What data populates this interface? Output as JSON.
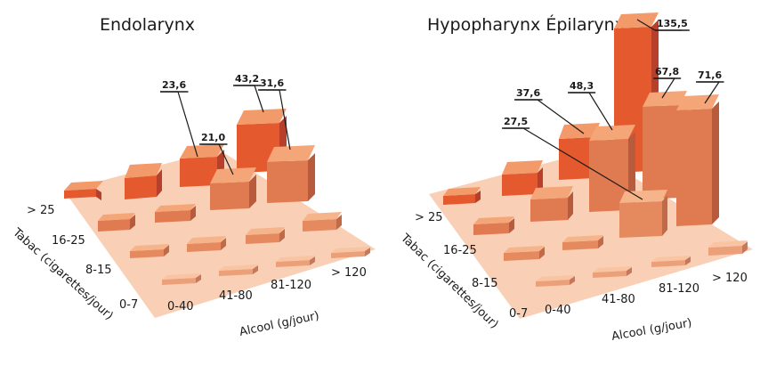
{
  "chart_data": [
    {
      "type": "bar3d",
      "title": "Endolarynx",
      "xlabel": "Alcool (g/jour)",
      "ylabel": "Tabac (cigarettes/jour)",
      "x_categories": [
        "0-40",
        "41-80",
        "81-120",
        "> 120"
      ],
      "y_categories": [
        "0-7",
        "8-15",
        "16-25",
        "> 25"
      ],
      "labeled_values": [
        {
          "x": "41-80",
          "y": "> 25",
          "label": "23,6"
        },
        {
          "x": "41-80",
          "y": "16-25",
          "label": "21,0"
        },
        {
          "x": "81-120",
          "y": "> 25",
          "label": "43,2"
        },
        {
          "x": "81-120",
          "y": "16-25",
          "label": "31,6"
        }
      ]
    },
    {
      "type": "bar3d",
      "title": "Hypopharynx Épilarynx",
      "xlabel": "Alcool (g/jour)",
      "ylabel": "Tabac (cigarettes/jour)",
      "x_categories": [
        "0-40",
        "41-80",
        "81-120",
        "> 120"
      ],
      "y_categories": [
        "0-7",
        "8-15",
        "16-25",
        "> 25"
      ],
      "labeled_values": [
        {
          "x": "81-120",
          "y": "> 25",
          "label": "135,5"
        },
        {
          "x": "41-80",
          "y": "> 25",
          "label": "37,6"
        },
        {
          "x": "41-80",
          "y": "16-25",
          "label": "48,3"
        },
        {
          "x": "41-80",
          "y": "8-15",
          "label": "27,5"
        },
        {
          "x": "81-120",
          "y": "16-25",
          "label": "67,8"
        },
        {
          "x": "> 120",
          "y": "16-25",
          "label": "71,6"
        }
      ]
    }
  ]
}
